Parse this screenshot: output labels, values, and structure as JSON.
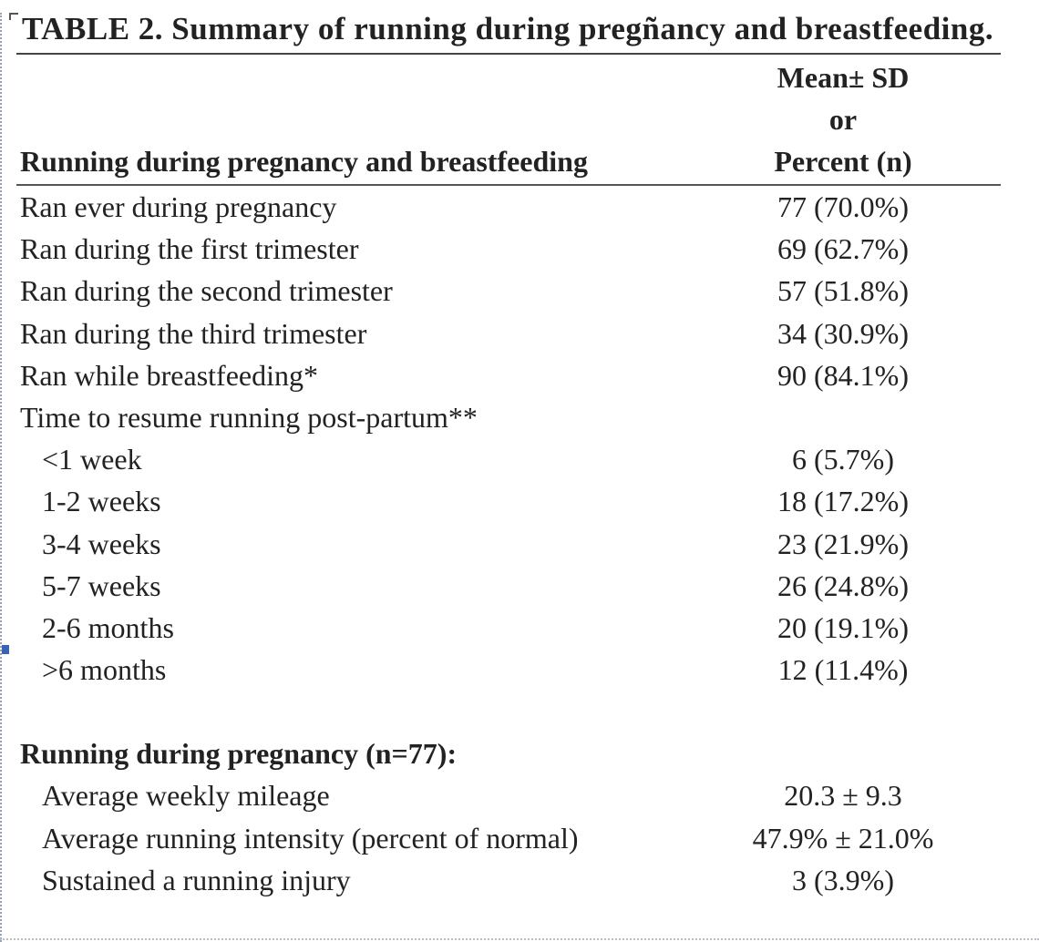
{
  "table": {
    "title": "TABLE 2.  Summary of running during pregñancy and breastfeeding.",
    "header": {
      "label_col": "Running during pregnancy and breastfeeding",
      "value_col_lines": [
        "Mean± SD",
        "or",
        "Percent (n)"
      ]
    },
    "rows": [
      {
        "label": "Ran ever during pregnancy",
        "value": "77 (70.0%)",
        "indent": false,
        "bold": false
      },
      {
        "label": "Ran during the first trimester",
        "value": "69 (62.7%)",
        "indent": false,
        "bold": false
      },
      {
        "label": "Ran during the second trimester",
        "value": "57 (51.8%)",
        "indent": false,
        "bold": false
      },
      {
        "label": "Ran during the third trimester",
        "value": "34 (30.9%)",
        "indent": false,
        "bold": false
      },
      {
        "label": "Ran while breastfeeding*",
        "value": "90 (84.1%)",
        "indent": false,
        "bold": false
      },
      {
        "label": "Time to resume running post-partum**",
        "value": "",
        "indent": false,
        "bold": false
      },
      {
        "label": "<1 week",
        "value": "6 (5.7%)",
        "indent": true,
        "bold": false
      },
      {
        "label": "1-2 weeks",
        "value": "18 (17.2%)",
        "indent": true,
        "bold": false
      },
      {
        "label": "3-4 weeks",
        "value": "23 (21.9%)",
        "indent": true,
        "bold": false
      },
      {
        "label": "5-7 weeks",
        "value": "26 (24.8%)",
        "indent": true,
        "bold": false
      },
      {
        "label": "2-6 months",
        "value": "20 (19.1%)",
        "indent": true,
        "bold": false
      },
      {
        "label": ">6 months",
        "value": "12 (11.4%)",
        "indent": true,
        "bold": false
      },
      {
        "label": "",
        "value": "",
        "indent": false,
        "bold": false,
        "blank": true
      },
      {
        "label": "Running during pregnancy (n=77):",
        "value": "",
        "indent": false,
        "bold": true
      },
      {
        "label": "Average weekly mileage",
        "value": "20.3 ± 9.3",
        "indent": true,
        "bold": false
      },
      {
        "label": "Average running intensity (percent of normal)",
        "value": "47.9% ± 21.0%",
        "indent": true,
        "bold": false
      },
      {
        "label": "Sustained a running injury",
        "value": "3 (3.9%)",
        "indent": true,
        "bold": false
      }
    ]
  }
}
